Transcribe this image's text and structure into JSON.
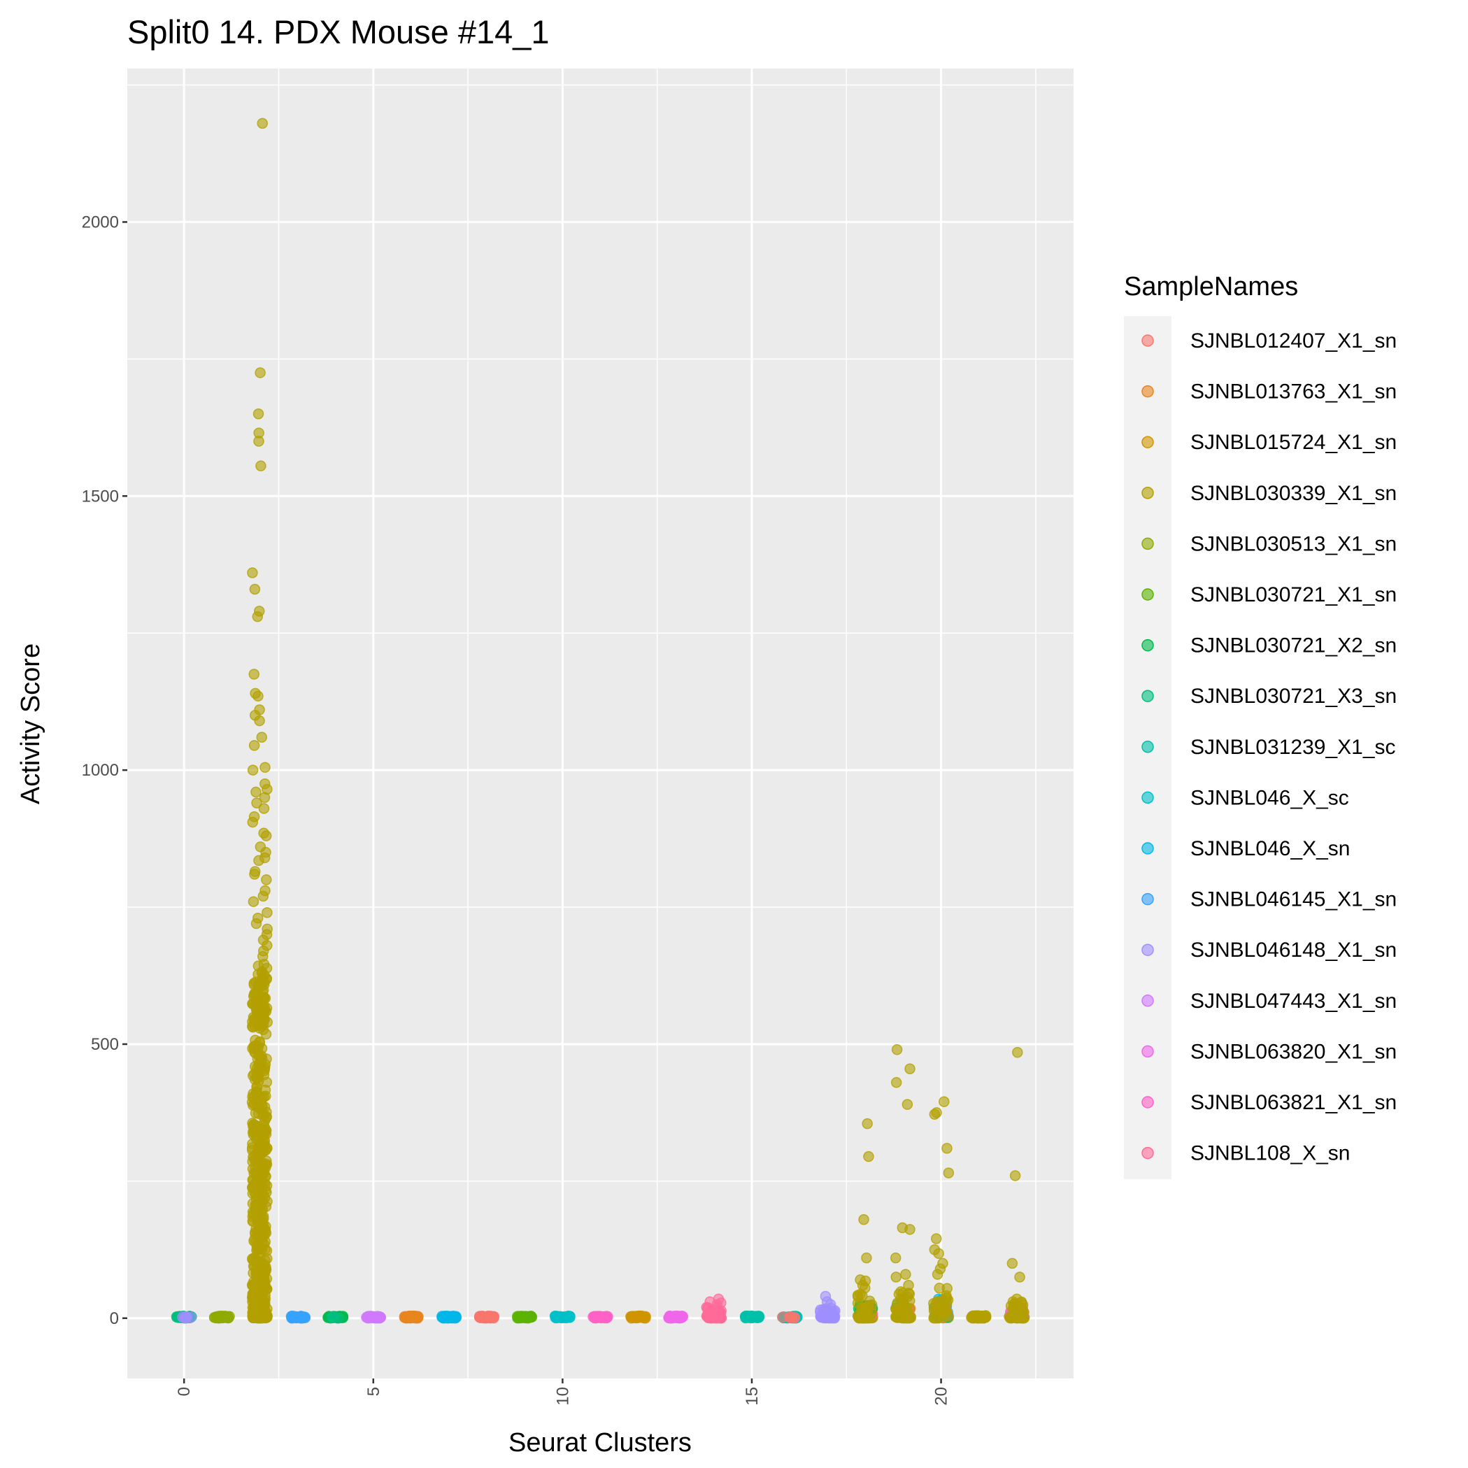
{
  "chart_data": {
    "type": "scatter",
    "title": "Split0 14. PDX Mouse #14_1",
    "xlabel": "Seurat Clusters",
    "ylabel": "Activity Score",
    "xlim": [
      -1.5,
      23.5
    ],
    "ylim": [
      -110,
      2280
    ],
    "x_ticks": [
      0,
      5,
      10,
      15,
      20
    ],
    "x_tick_labels": [
      "0",
      "5",
      "10",
      "15",
      "20"
    ],
    "y_ticks": [
      0,
      500,
      1000,
      1500,
      2000
    ],
    "y_tick_labels": [
      "0",
      "500",
      "1000",
      "1500",
      "2000"
    ],
    "grid": true,
    "jitter": true,
    "legend": {
      "title": "SampleNames",
      "placement": "right",
      "entries": [
        {
          "name": "SJNBL012407_X1_sn",
          "color": "#F8766D"
        },
        {
          "name": "SJNBL013763_X1_sn",
          "color": "#E8851E"
        },
        {
          "name": "SJNBL015724_X1_sn",
          "color": "#D09400"
        },
        {
          "name": "SJNBL030339_X1_sn",
          "color": "#B3A000"
        },
        {
          "name": "SJNBL030513_X1_sn",
          "color": "#8FAA00"
        },
        {
          "name": "SJNBL030721_X1_sn",
          "color": "#5BB300"
        },
        {
          "name": "SJNBL030721_X2_sn",
          "color": "#00BA4A"
        },
        {
          "name": "SJNBL030721_X3_sn",
          "color": "#00BE7E"
        },
        {
          "name": "SJNBL031239_X1_sc",
          "color": "#00C0AA"
        },
        {
          "name": "SJNBL046_X_sc",
          "color": "#00BFC8"
        },
        {
          "name": "SJNBL046_X_sn",
          "color": "#00B7E8"
        },
        {
          "name": "SJNBL046145_X1_sn",
          "color": "#35A2FF"
        },
        {
          "name": "SJNBL046148_X1_sn",
          "color": "#9E8FFF"
        },
        {
          "name": "SJNBL047443_X1_sn",
          "color": "#D078FF"
        },
        {
          "name": "SJNBL063820_X1_sn",
          "color": "#F066EA"
        },
        {
          "name": "SJNBL063821_X1_sn",
          "color": "#FF61C6"
        },
        {
          "name": "SJNBL108_X_sn",
          "color": "#FF6A98"
        }
      ]
    },
    "clusters": [
      {
        "cluster": 0,
        "sample": 7,
        "extra_samples": [
          12
        ],
        "bulk_max": 0,
        "points": []
      },
      {
        "cluster": 1,
        "sample": 4,
        "extra_samples": [],
        "bulk_max": 0,
        "points": []
      },
      {
        "cluster": 2,
        "sample": 3,
        "extra_samples": [
          2
        ],
        "bulk_max": 650,
        "points": [
          2180,
          1725,
          1650,
          1615,
          1600,
          1555,
          1360,
          1330,
          1290,
          1280,
          1175,
          1140,
          1135,
          1110,
          1100,
          1090,
          1060,
          1045,
          1005,
          1000,
          975,
          965,
          960,
          950,
          940,
          930,
          915,
          905,
          885,
          880,
          860,
          850,
          840,
          835,
          815,
          810,
          800,
          780,
          770,
          760,
          740,
          730,
          720,
          710,
          700,
          690,
          680,
          670,
          660
        ]
      },
      {
        "cluster": 3,
        "sample": 11,
        "extra_samples": [],
        "bulk_max": 0,
        "points": []
      },
      {
        "cluster": 4,
        "sample": 6,
        "extra_samples": [
          7
        ],
        "bulk_max": 0,
        "points": []
      },
      {
        "cluster": 5,
        "sample": 13,
        "extra_samples": [],
        "bulk_max": 0,
        "points": []
      },
      {
        "cluster": 6,
        "sample": 1,
        "extra_samples": [],
        "bulk_max": 0,
        "points": []
      },
      {
        "cluster": 7,
        "sample": 10,
        "extra_samples": [],
        "bulk_max": 0,
        "points": []
      },
      {
        "cluster": 8,
        "sample": 0,
        "extra_samples": [],
        "bulk_max": 0,
        "points": []
      },
      {
        "cluster": 9,
        "sample": 5,
        "extra_samples": [],
        "bulk_max": 0,
        "points": []
      },
      {
        "cluster": 10,
        "sample": 9,
        "extra_samples": [],
        "bulk_max": 0,
        "points": []
      },
      {
        "cluster": 11,
        "sample": 15,
        "extra_samples": [],
        "bulk_max": 0,
        "points": []
      },
      {
        "cluster": 12,
        "sample": 2,
        "extra_samples": [],
        "bulk_max": 0,
        "points": []
      },
      {
        "cluster": 13,
        "sample": 14,
        "extra_samples": [],
        "bulk_max": 0,
        "points": []
      },
      {
        "cluster": 14,
        "sample": 16,
        "extra_samples": [],
        "bulk_max": 20,
        "points": [
          35,
          30,
          28,
          25
        ]
      },
      {
        "cluster": 15,
        "sample": 8,
        "extra_samples": [],
        "bulk_max": 0,
        "points": []
      },
      {
        "cluster": 16,
        "sample": 8,
        "extra_samples": [
          9,
          0
        ],
        "bulk_max": 0,
        "points": []
      },
      {
        "cluster": 17,
        "sample": 12,
        "extra_samples": [],
        "bulk_max": 20,
        "points": [
          40,
          30,
          25
        ]
      },
      {
        "cluster": 18,
        "sample": 3,
        "extra_samples": [
          16,
          4,
          6
        ],
        "bulk_max": 45,
        "points": [
          355,
          295,
          180,
          110,
          70,
          68,
          60,
          55
        ]
      },
      {
        "cluster": 19,
        "sample": 3,
        "extra_samples": [
          4,
          7,
          1
        ],
        "bulk_max": 50,
        "points": [
          490,
          455,
          430,
          390,
          165,
          162,
          110,
          80,
          75,
          60
        ]
      },
      {
        "cluster": 20,
        "sample": 3,
        "extra_samples": [
          10,
          13,
          12,
          16,
          8
        ],
        "bulk_max": 60,
        "points": [
          395,
          375,
          372,
          310,
          265,
          145,
          125,
          118,
          100,
          90,
          80
        ]
      },
      {
        "cluster": 21,
        "sample": 3,
        "extra_samples": [],
        "bulk_max": 5,
        "points": []
      },
      {
        "cluster": 22,
        "sample": 3,
        "extra_samples": [
          15,
          16,
          14
        ],
        "bulk_max": 30,
        "points": [
          485,
          260,
          100,
          75,
          35,
          30
        ]
      }
    ]
  }
}
